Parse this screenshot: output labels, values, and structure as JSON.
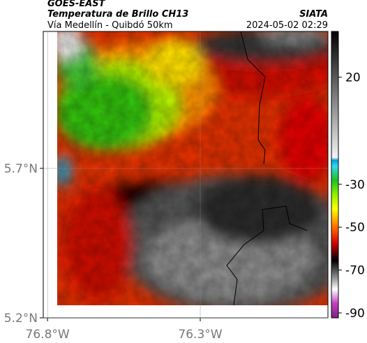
{
  "header": {
    "satellite": "GOES-EAST",
    "title": "Temperatura de Brillo CH13",
    "subtitle": "Vía Medellín - Quibdó 50km",
    "source": "SIATA",
    "datetime": "2024-05-02 02:29"
  },
  "map": {
    "xlim": [
      -76.814,
      -75.882
    ],
    "ylim": [
      5.2,
      6.158
    ],
    "xticks": [
      {
        "value": -76.8,
        "label": "76.8°W"
      },
      {
        "value": -76.3,
        "label": "76.3°W"
      }
    ],
    "yticks": [
      {
        "value": 5.7,
        "label": "5.7°N"
      },
      {
        "value": 5.2,
        "label": "5.2°N"
      }
    ]
  },
  "colorbar": {
    "lim": [
      -92.3,
      41.3
    ],
    "ticks": [
      20,
      -30,
      -50,
      -70,
      -90
    ]
  }
}
